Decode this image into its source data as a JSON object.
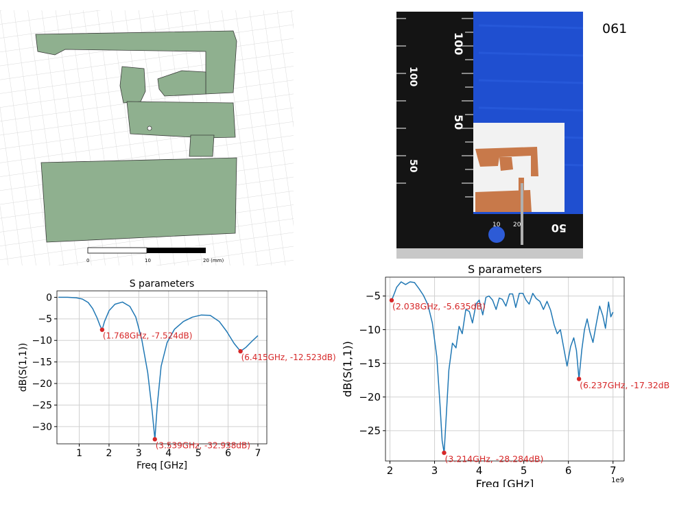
{
  "sample_id": "061",
  "scale_bar": {
    "labels": [
      "0",
      "10",
      "20 (mm)"
    ]
  },
  "photo": {
    "ruler_vertical_labels": [
      "100",
      "100",
      "50",
      "50"
    ],
    "ruler_horizontal_labels": [
      "10",
      "20",
      "50"
    ]
  },
  "chart_data": [
    {
      "type": "line",
      "title": "S parameters",
      "xlabel": "Freq [GHz]",
      "ylabel": "dB(S(1,1))",
      "xlim": [
        0.25,
        7.3
      ],
      "ylim": [
        -34,
        1.5
      ],
      "xticks": [
        1,
        2,
        3,
        4,
        5,
        6,
        7
      ],
      "yticks": [
        0,
        -5,
        -10,
        -15,
        -20,
        -25,
        -30
      ],
      "grid": true,
      "x_multiplier_label": "",
      "line_color": "#1f77b4",
      "marker_color": "#d62728",
      "series": [
        {
          "x": [
            0.3,
            0.6,
            0.9,
            1.1,
            1.3,
            1.45,
            1.6,
            1.7,
            1.768,
            1.85,
            2.0,
            2.2,
            2.45,
            2.7,
            2.9,
            3.1,
            3.3,
            3.45,
            3.539,
            3.62,
            3.75,
            3.95,
            4.2,
            4.5,
            4.8,
            5.1,
            5.4,
            5.7,
            5.95,
            6.2,
            6.415,
            6.6,
            6.8,
            7.0
          ],
          "y": [
            0.0,
            0.0,
            -0.1,
            -0.4,
            -1.2,
            -2.6,
            -4.8,
            -6.6,
            -7.524,
            -5.6,
            -3.1,
            -1.6,
            -1.1,
            -2.1,
            -4.6,
            -9.8,
            -17.5,
            -26.5,
            -32.938,
            -25.0,
            -16.0,
            -10.5,
            -7.4,
            -5.6,
            -4.6,
            -4.1,
            -4.2,
            -5.6,
            -7.9,
            -10.7,
            -12.523,
            -11.6,
            -10.2,
            -8.9
          ]
        }
      ],
      "markers": [
        {
          "x": 1.768,
          "y": -7.524,
          "label": "(1.768GHz, -7.524dB)"
        },
        {
          "x": 3.539,
          "y": -32.938,
          "label": "(3.539GHz, -32.938dB)"
        },
        {
          "x": 6.415,
          "y": -12.523,
          "label": "(6.415GHz, -12.523dB)"
        }
      ]
    },
    {
      "type": "line",
      "title": "S parameters",
      "xlabel": "Freq [GHz]",
      "ylabel": "dB(S(1,1))",
      "xlim": [
        1.9,
        7.25
      ],
      "ylim": [
        -29.5,
        -2.2
      ],
      "xticks": [
        2,
        3,
        4,
        5,
        6,
        7
      ],
      "yticks": [
        -5,
        -10,
        -15,
        -20,
        -25
      ],
      "grid": true,
      "x_multiplier_label": "1e9",
      "line_color": "#1f77b4",
      "marker_color": "#d62728",
      "series": [
        {
          "x": [
            2.038,
            2.1,
            2.15,
            2.25,
            2.35,
            2.45,
            2.55,
            2.65,
            2.75,
            2.85,
            2.95,
            3.05,
            3.12,
            3.17,
            3.214,
            3.26,
            3.32,
            3.4,
            3.48,
            3.55,
            3.62,
            3.7,
            3.78,
            3.85,
            3.93,
            4.0,
            4.08,
            4.15,
            4.22,
            4.3,
            4.38,
            4.45,
            4.52,
            4.6,
            4.68,
            4.75,
            4.82,
            4.9,
            4.98,
            5.05,
            5.12,
            5.2,
            5.28,
            5.36,
            5.44,
            5.52,
            5.6,
            5.68,
            5.75,
            5.82,
            5.9,
            5.97,
            6.05,
            6.12,
            6.18,
            6.237,
            6.3,
            6.36,
            6.42,
            6.48,
            6.55,
            6.62,
            6.7,
            6.77,
            6.83,
            6.9,
            6.95,
            7.0
          ],
          "y": [
            -5.635,
            -4.6,
            -3.7,
            -2.9,
            -3.3,
            -2.9,
            -3.0,
            -3.9,
            -4.9,
            -6.3,
            -9.0,
            -14.0,
            -21.0,
            -26.5,
            -28.284,
            -23.0,
            -16.0,
            -12.0,
            -12.7,
            -9.5,
            -10.6,
            -7.0,
            -7.3,
            -9.0,
            -6.2,
            -5.6,
            -7.8,
            -5.2,
            -5.0,
            -5.6,
            -7.0,
            -5.3,
            -5.5,
            -6.5,
            -4.7,
            -4.7,
            -6.7,
            -4.6,
            -4.6,
            -5.6,
            -6.2,
            -4.6,
            -5.4,
            -5.8,
            -7.0,
            -5.8,
            -7.1,
            -9.3,
            -10.6,
            -10.0,
            -12.9,
            -15.4,
            -12.5,
            -11.2,
            -13.1,
            -17.32,
            -13.0,
            -10.0,
            -8.4,
            -10.3,
            -11.9,
            -9.3,
            -6.5,
            -7.9,
            -9.8,
            -5.9,
            -8.1,
            -7.4
          ]
        }
      ],
      "markers": [
        {
          "x": 2.038,
          "y": -5.635,
          "label": "(2.038GHz, -5.635dB)"
        },
        {
          "x": 3.214,
          "y": -28.284,
          "label": "(3.214GHz, -28.284dB)"
        },
        {
          "x": 6.237,
          "y": -17.32,
          "label": "(6.237GHz, -17.32dB"
        }
      ]
    }
  ]
}
